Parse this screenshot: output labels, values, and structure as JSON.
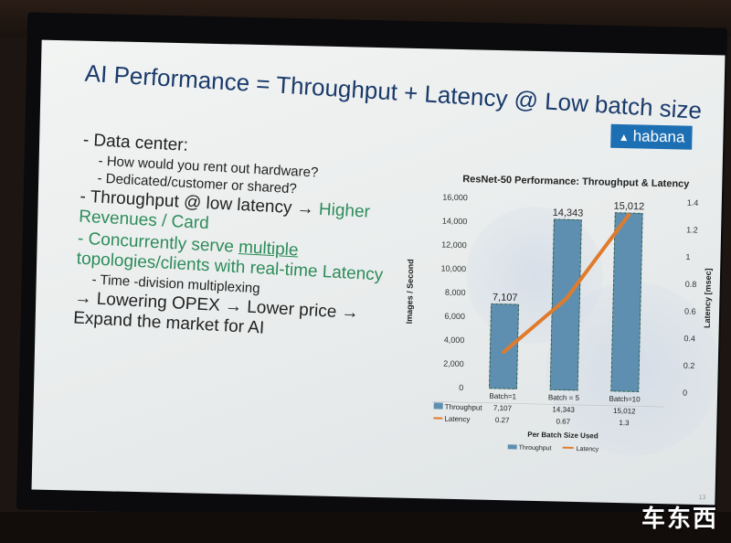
{
  "slide": {
    "title": "AI Performance = Throughput + Latency @ Low batch size",
    "brand": "habana",
    "bullets": [
      {
        "level": 1,
        "parts": [
          {
            "text": "- Data center:"
          }
        ]
      },
      {
        "level": 2,
        "parts": [
          {
            "text": "- How would you rent out hardware?"
          }
        ]
      },
      {
        "level": 2,
        "parts": [
          {
            "text": "- Dedicated/customer or shared?"
          }
        ]
      },
      {
        "level": 1,
        "parts": [
          {
            "text": "- Throughput @ low latency → "
          },
          {
            "text": "Higher Revenues / Card",
            "style": "green"
          }
        ]
      },
      {
        "level": 1,
        "parts": [
          {
            "text": "- Concurrently serve ",
            "style": "green"
          },
          {
            "text": "multiple",
            "style": "green-underline"
          },
          {
            "text": " topologies/clients with ",
            "style": "green"
          },
          {
            "text": "real-time",
            "style": "green"
          },
          {
            "text": " Latency",
            "style": "green"
          }
        ]
      },
      {
        "level": 2,
        "parts": [
          {
            "text": "- Time -division multiplexing"
          }
        ]
      },
      {
        "level": 1,
        "parts": [
          {
            "text": "→ Lowering OPEX → Lower price → Expand the market for AI"
          }
        ]
      }
    ],
    "page_number": "13"
  },
  "chart_data": {
    "type": "bar",
    "title": "ResNet-50 Performance: Throughput & Latency",
    "categories": [
      "Batch=1",
      "Batch = 5",
      "Batch=10"
    ],
    "series": [
      {
        "name": "Throughput",
        "values": [
          7107,
          14343,
          15012
        ],
        "labels": [
          "7,107",
          "14,343",
          "15,012"
        ],
        "axis": "left",
        "kind": "bar"
      },
      {
        "name": "Latency",
        "values": [
          0.27,
          0.67,
          1.3
        ],
        "labels": [
          "0.27",
          "0.67",
          "1.3"
        ],
        "axis": "right",
        "kind": "line",
        "color": "#e07b2c"
      }
    ],
    "ylabel": "Images / Second",
    "y2label": "Latency  [msec]",
    "xlabel": "Per Batch Size Used",
    "ylim": [
      0,
      16000
    ],
    "y2lim": [
      0,
      1.4
    ],
    "yticks": [
      "0",
      "2,000",
      "4,000",
      "6,000",
      "8,000",
      "10,000",
      "12,000",
      "14,000",
      "16,000"
    ],
    "y2ticks": [
      "0",
      "0.2",
      "0.4",
      "0.6",
      "0.8",
      "1",
      "1.2",
      "1.4"
    ],
    "legend": [
      "Throughput",
      "Latency"
    ],
    "legend_position": "bottom"
  },
  "watermark": "车东西"
}
